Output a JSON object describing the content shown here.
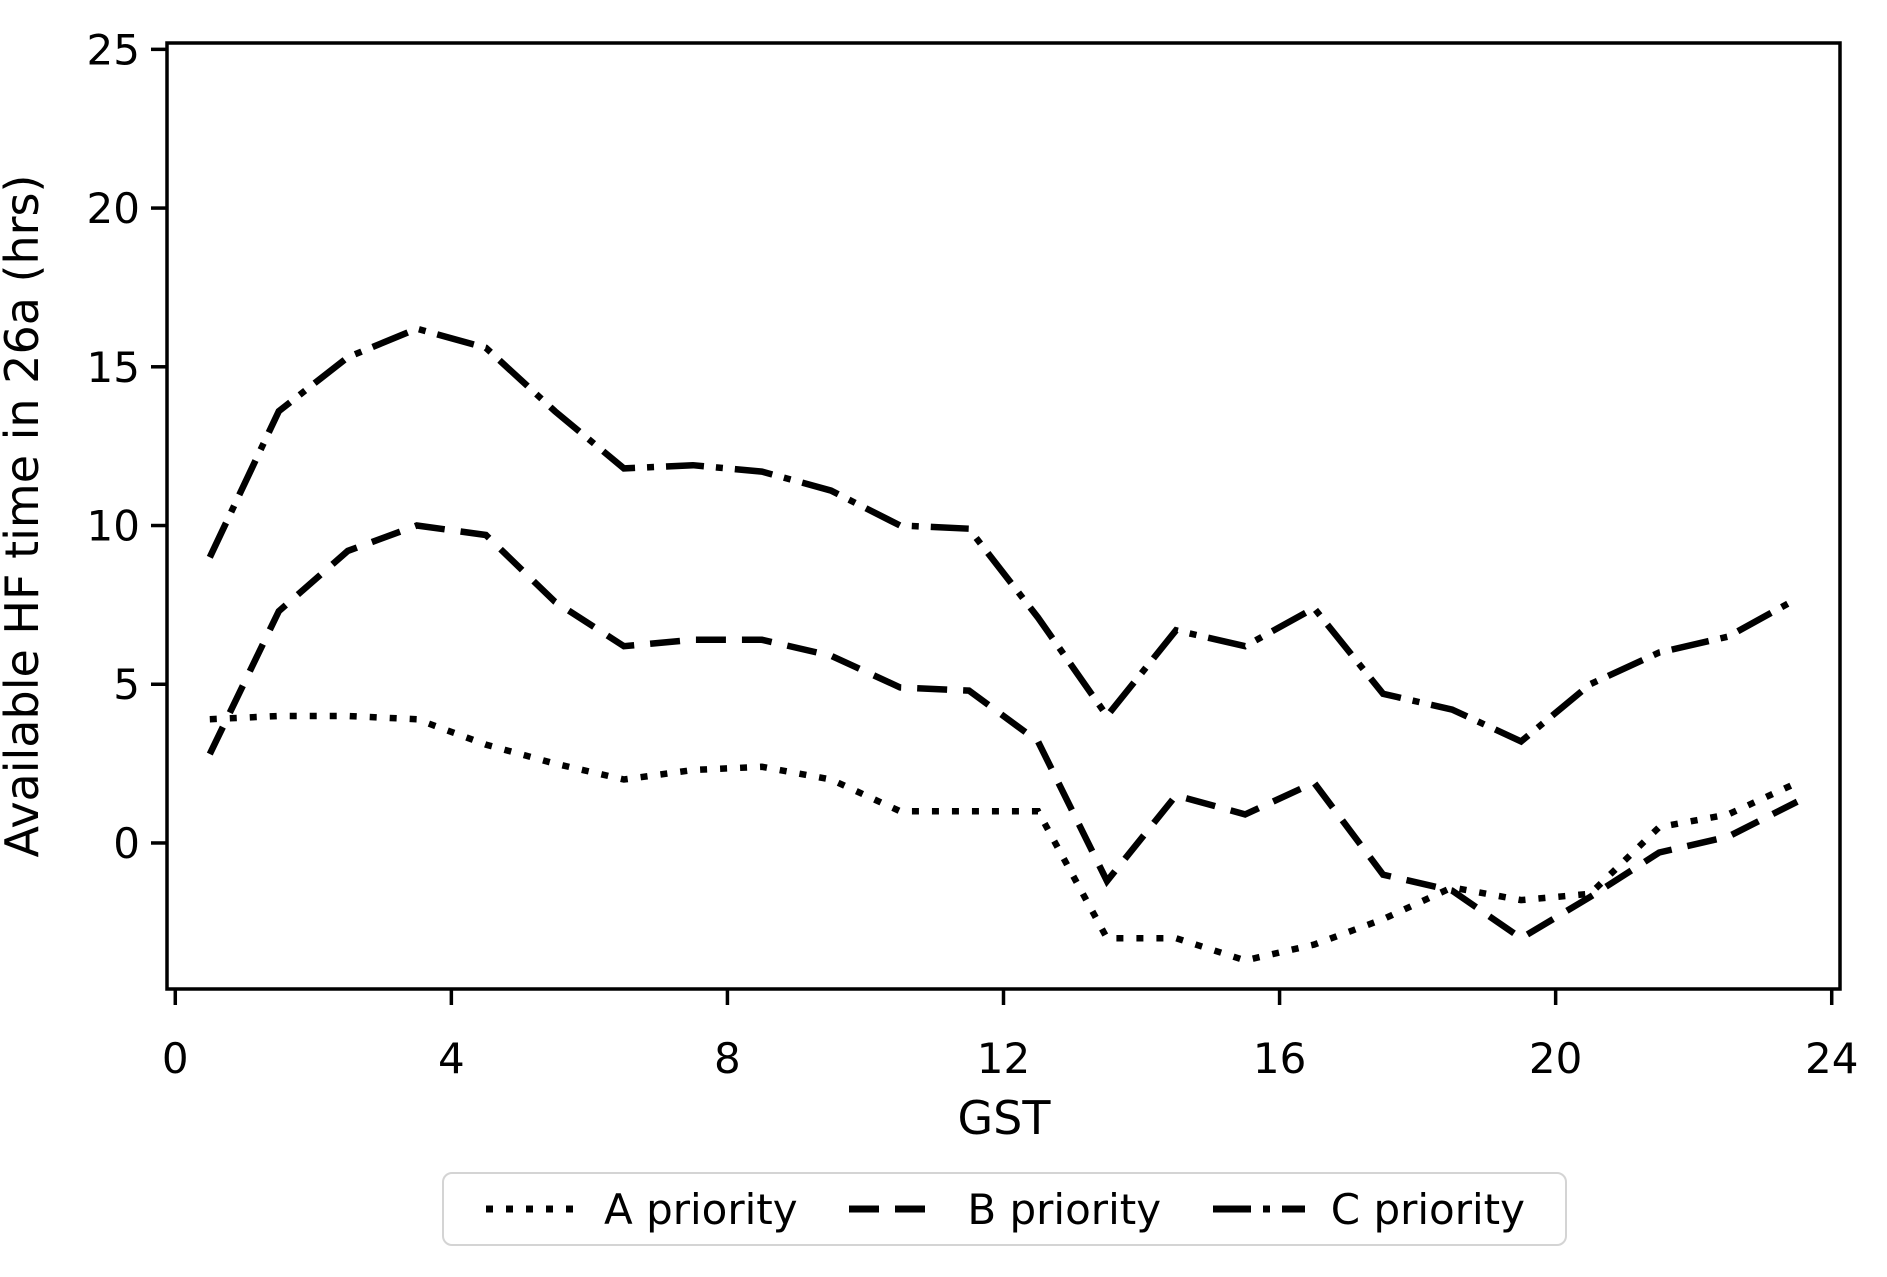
{
  "chart_data": {
    "type": "line",
    "title": "",
    "xlabel": "GST",
    "ylabel": "Available HF time in 26a (hrs)",
    "xlim": [
      -0.12,
      24.12
    ],
    "ylim": [
      -4.6,
      25.2
    ],
    "xticks": [
      0,
      4,
      8,
      12,
      16,
      20,
      24
    ],
    "yticks": [
      0,
      5,
      10,
      15,
      20,
      25
    ],
    "grid": false,
    "legend_position": "bottom-center",
    "line_color": "#000000",
    "background_color": "#ffffff",
    "x": [
      0.5,
      1.5,
      2.5,
      3.5,
      4.5,
      5.5,
      6.5,
      7.5,
      8.5,
      9.5,
      10.5,
      11.5,
      12.5,
      13.5,
      14.5,
      15.5,
      16.5,
      17.5,
      18.5,
      19.5,
      20.5,
      21.5,
      22.5,
      23.5
    ],
    "series": [
      {
        "name": "A priority",
        "linestyle": "dotted",
        "values": [
          3.9,
          4.0,
          4.0,
          3.9,
          3.1,
          2.5,
          2.0,
          2.3,
          2.4,
          2.0,
          1.0,
          1.0,
          1.0,
          -3.0,
          -3.0,
          -3.7,
          -3.2,
          -2.4,
          -1.4,
          -1.8,
          -1.6,
          0.5,
          0.9,
          1.9
        ]
      },
      {
        "name": "B priority",
        "linestyle": "dashed",
        "values": [
          2.8,
          7.3,
          9.2,
          10.0,
          9.7,
          7.6,
          6.2,
          6.4,
          6.4,
          5.9,
          4.9,
          4.8,
          3.2,
          -1.2,
          1.5,
          0.9,
          1.9,
          -1.0,
          -1.5,
          -3.0,
          -1.7,
          -0.3,
          0.2,
          1.3
        ]
      },
      {
        "name": "C priority",
        "linestyle": "dashdot",
        "values": [
          9.0,
          13.6,
          15.3,
          16.2,
          15.6,
          13.6,
          11.8,
          11.9,
          11.7,
          11.1,
          10.0,
          9.9,
          7.1,
          4.0,
          6.7,
          6.2,
          7.4,
          4.7,
          4.2,
          3.2,
          5.0,
          6.0,
          6.5,
          7.7
        ]
      }
    ]
  }
}
